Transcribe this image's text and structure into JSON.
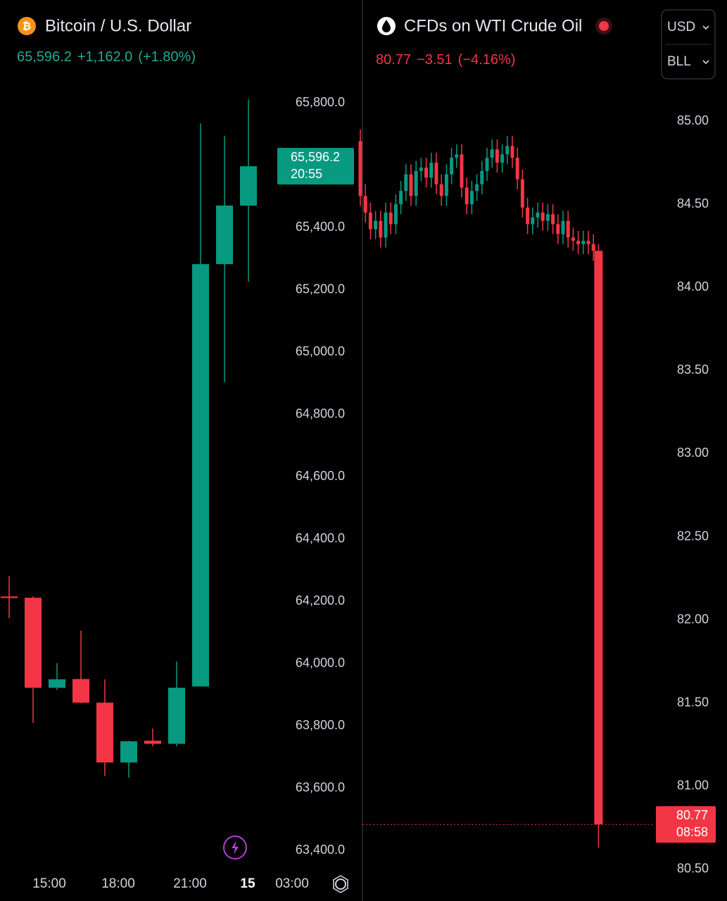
{
  "chart_data": [
    {
      "type": "candlestick",
      "title": "Bitcoin / U.S. Dollar",
      "last": "65,596.2",
      "change": "+1,162.0",
      "change_pct": "(+1.80%)",
      "color_up": "#089981",
      "color_down": "#f23645",
      "open": [
        64215,
        64211,
        63922,
        63950,
        63874,
        63682,
        63752,
        63742,
        63926,
        65282,
        65470
      ],
      "high": [
        64280,
        64215,
        64001,
        64105,
        63949,
        63752,
        63791,
        64006,
        65734,
        65694,
        65811
      ],
      "low": [
        64145,
        63809,
        63915,
        63872,
        63639,
        63633,
        63734,
        63734,
        63926,
        64903,
        65226
      ],
      "close": [
        64210,
        63922,
        63949,
        63874,
        63682,
        63750,
        63742,
        63922,
        65282,
        65470,
        65596.2
      ],
      "ylim": [
        63320,
        65880
      ],
      "yticks": [
        {
          "value": 65800,
          "label": "65,800.0"
        },
        {
          "value": 65400,
          "label": "65,400.0"
        },
        {
          "value": 65200,
          "label": "65,200.0"
        },
        {
          "value": 65000,
          "label": "65,000.0"
        },
        {
          "value": 64800,
          "label": "64,800.0"
        },
        {
          "value": 64600,
          "label": "64,600.0"
        },
        {
          "value": 64400,
          "label": "64,400.0"
        },
        {
          "value": 64200,
          "label": "64,200.0"
        },
        {
          "value": 64000,
          "label": "64,000.0"
        },
        {
          "value": 63800,
          "label": "63,800.0"
        },
        {
          "value": 63600,
          "label": "63,600.0"
        },
        {
          "value": 63400,
          "label": "63,400.0"
        }
      ],
      "x_labels": [
        "15:00",
        "18:00",
        "21:00",
        "15",
        "03:00"
      ],
      "price_tag": "65,596.2",
      "countdown": "20:55"
    },
    {
      "type": "candlestick",
      "title": "CFDs on WTI Crude Oil",
      "last": "80.77",
      "change": "−3.51",
      "change_pct": "(−4.16%)",
      "color_up": "#089981",
      "color_down": "#f23645",
      "open": [
        84.88,
        84.55,
        84.45,
        84.35,
        84.4,
        84.3,
        84.45,
        84.38,
        84.5,
        84.58,
        84.68,
        84.55,
        84.7,
        84.72,
        84.66,
        84.75,
        84.62,
        84.55,
        84.68,
        84.78,
        84.8,
        84.6,
        84.5,
        84.58,
        84.62,
        84.7,
        84.78,
        84.83,
        84.75,
        84.8,
        84.85,
        84.78,
        84.65,
        84.48,
        84.38,
        84.42,
        84.45,
        84.4,
        84.44,
        84.38,
        84.32,
        84.4,
        84.3,
        84.28,
        84.26,
        84.28,
        84.26,
        84.22
      ],
      "high": [
        84.95,
        84.62,
        84.51,
        84.46,
        84.46,
        84.51,
        84.51,
        84.56,
        84.64,
        84.74,
        84.74,
        84.76,
        84.78,
        84.78,
        84.81,
        84.81,
        84.68,
        84.74,
        84.84,
        84.86,
        84.86,
        84.66,
        84.64,
        84.68,
        84.76,
        84.84,
        84.89,
        84.89,
        84.86,
        84.91,
        84.91,
        84.84,
        84.71,
        84.54,
        84.48,
        84.51,
        84.51,
        84.5,
        84.5,
        84.44,
        84.46,
        84.46,
        84.36,
        84.34,
        84.34,
        84.34,
        84.32,
        84.26
      ],
      "low": [
        84.49,
        84.39,
        84.29,
        84.29,
        84.24,
        84.24,
        84.32,
        84.32,
        84.44,
        84.52,
        84.49,
        84.49,
        84.64,
        84.6,
        84.6,
        84.56,
        84.49,
        84.49,
        84.62,
        84.72,
        84.54,
        84.44,
        84.44,
        84.52,
        84.56,
        84.64,
        84.72,
        84.69,
        84.69,
        84.74,
        84.72,
        84.59,
        84.42,
        84.32,
        84.32,
        84.36,
        84.34,
        84.34,
        84.32,
        84.26,
        84.26,
        84.24,
        84.22,
        84.2,
        84.2,
        84.2,
        84.16,
        80.63
      ],
      "close": [
        84.55,
        84.45,
        84.35,
        84.4,
        84.3,
        84.45,
        84.38,
        84.5,
        84.58,
        84.68,
        84.55,
        84.7,
        84.72,
        84.66,
        84.75,
        84.62,
        84.55,
        84.68,
        84.78,
        84.8,
        84.6,
        84.5,
        84.58,
        84.62,
        84.7,
        84.78,
        84.83,
        84.75,
        84.8,
        84.85,
        84.78,
        84.65,
        84.48,
        84.38,
        84.42,
        84.45,
        84.4,
        84.44,
        84.38,
        84.32,
        84.4,
        84.3,
        84.28,
        84.26,
        84.28,
        84.26,
        84.22,
        80.77
      ],
      "ylim": [
        80.35,
        85.25
      ],
      "yticks": [
        {
          "value": 85,
          "label": "85.00"
        },
        {
          "value": 84.5,
          "label": "84.50"
        },
        {
          "value": 84,
          "label": "84.00"
        },
        {
          "value": 83.5,
          "label": "83.50"
        },
        {
          "value": 83,
          "label": "83.00"
        },
        {
          "value": 82.5,
          "label": "82.50"
        },
        {
          "value": 82,
          "label": "82.00"
        },
        {
          "value": 81.5,
          "label": "81.50"
        },
        {
          "value": 81,
          "label": "81.00"
        },
        {
          "value": 80.5,
          "label": "80.50"
        }
      ],
      "price_tag": "80.77",
      "countdown": "08:58"
    }
  ],
  "controls": {
    "currency": "USD",
    "unit": "BLL"
  }
}
